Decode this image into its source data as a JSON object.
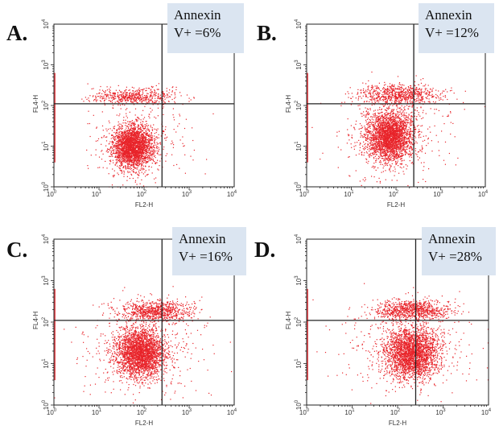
{
  "colors": {
    "dots": "#e8242a",
    "axes": "#222222",
    "annotation_bg": "#dbe5f1"
  },
  "chart_data": [
    {
      "type": "scatter",
      "panel_label": "A.",
      "xlabel": "FL2-H",
      "ylabel": "FL4-H",
      "x_scale": "log",
      "y_scale": "log",
      "xlim": [
        1,
        10000
      ],
      "ylim": [
        1,
        10000
      ],
      "x_ticks": [
        {
          "base": "10",
          "exp": "0"
        },
        {
          "base": "10",
          "exp": "1"
        },
        {
          "base": "10",
          "exp": "2"
        },
        {
          "base": "10",
          "exp": "3"
        },
        {
          "base": "10",
          "exp": "4"
        }
      ],
      "y_ticks": [
        {
          "base": "10",
          "exp": "0"
        },
        {
          "base": "10",
          "exp": "1"
        },
        {
          "base": "10",
          "exp": "2"
        },
        {
          "base": "10",
          "exp": "3"
        },
        {
          "base": "10",
          "exp": "4"
        }
      ],
      "quadrant_gate": {
        "x": 250,
        "y": 110
      },
      "annotation": {
        "line1": "Annexin",
        "line2": "V+ =6%"
      },
      "populations": [
        {
          "name": "main",
          "cx": 55,
          "cy": 10,
          "sx": 0.22,
          "sy": 0.26,
          "n": 2400
        },
        {
          "name": "upper-band",
          "cx": 60,
          "cy": 170,
          "sx": 0.45,
          "sy": 0.1,
          "n": 550
        },
        {
          "name": "scatter",
          "cx": 70,
          "cy": 12,
          "sx": 0.55,
          "sy": 0.5,
          "n": 380
        }
      ]
    },
    {
      "type": "scatter",
      "panel_label": "B.",
      "xlabel": "FL2-H",
      "ylabel": "FL4-H",
      "x_scale": "log",
      "y_scale": "log",
      "xlim": [
        1,
        10000
      ],
      "ylim": [
        1,
        10000
      ],
      "x_ticks": [
        {
          "base": "10",
          "exp": "0"
        },
        {
          "base": "10",
          "exp": "1"
        },
        {
          "base": "10",
          "exp": "2"
        },
        {
          "base": "10",
          "exp": "3"
        },
        {
          "base": "10",
          "exp": "4"
        }
      ],
      "y_ticks": [
        {
          "base": "10",
          "exp": "0"
        },
        {
          "base": "10",
          "exp": "1"
        },
        {
          "base": "10",
          "exp": "2"
        },
        {
          "base": "10",
          "exp": "3"
        },
        {
          "base": "10",
          "exp": "4"
        }
      ],
      "quadrant_gate": {
        "x": 250,
        "y": 110
      },
      "annotation": {
        "line1": "Annexin",
        "line2": "V+ =12%"
      },
      "populations": [
        {
          "name": "main",
          "cx": 70,
          "cy": 18,
          "sx": 0.25,
          "sy": 0.3,
          "n": 2500
        },
        {
          "name": "upper-band",
          "cx": 110,
          "cy": 190,
          "sx": 0.45,
          "sy": 0.13,
          "n": 750
        },
        {
          "name": "scatter",
          "cx": 80,
          "cy": 22,
          "sx": 0.6,
          "sy": 0.55,
          "n": 450
        }
      ]
    },
    {
      "type": "scatter",
      "panel_label": "C.",
      "xlabel": "FL2-H",
      "ylabel": "FL4-H",
      "x_scale": "log",
      "y_scale": "log",
      "xlim": [
        1,
        10000
      ],
      "ylim": [
        1,
        10000
      ],
      "x_ticks": [
        {
          "base": "10",
          "exp": "0"
        },
        {
          "base": "10",
          "exp": "1"
        },
        {
          "base": "10",
          "exp": "2"
        },
        {
          "base": "10",
          "exp": "3"
        },
        {
          "base": "10",
          "exp": "4"
        }
      ],
      "y_ticks": [
        {
          "base": "10",
          "exp": "0"
        },
        {
          "base": "10",
          "exp": "1"
        },
        {
          "base": "10",
          "exp": "2"
        },
        {
          "base": "10",
          "exp": "3"
        },
        {
          "base": "10",
          "exp": "4"
        }
      ],
      "quadrant_gate": {
        "x": 250,
        "y": 110
      },
      "annotation": {
        "line1": "Annexin",
        "line2": "V+ =16%"
      },
      "populations": [
        {
          "name": "main",
          "cx": 80,
          "cy": 18,
          "sx": 0.27,
          "sy": 0.3,
          "n": 2500
        },
        {
          "name": "upper-band",
          "cx": 170,
          "cy": 190,
          "sx": 0.4,
          "sy": 0.13,
          "n": 800
        },
        {
          "name": "scatter",
          "cx": 90,
          "cy": 25,
          "sx": 0.65,
          "sy": 0.55,
          "n": 450
        }
      ]
    },
    {
      "type": "scatter",
      "panel_label": "D.",
      "xlabel": "FL2-H",
      "ylabel": "FL4-H",
      "x_scale": "log",
      "y_scale": "log",
      "xlim": [
        1,
        10000
      ],
      "ylim": [
        1,
        10000
      ],
      "x_ticks": [
        {
          "base": "10",
          "exp": "0"
        },
        {
          "base": "10",
          "exp": "1"
        },
        {
          "base": "10",
          "exp": "2"
        },
        {
          "base": "10",
          "exp": "3"
        },
        {
          "base": "10",
          "exp": "4"
        }
      ],
      "y_ticks": [
        {
          "base": "10",
          "exp": "0"
        },
        {
          "base": "10",
          "exp": "1"
        },
        {
          "base": "10",
          "exp": "2"
        },
        {
          "base": "10",
          "exp": "3"
        },
        {
          "base": "10",
          "exp": "4"
        }
      ],
      "quadrant_gate": {
        "x": 250,
        "y": 110
      },
      "annotation": {
        "line1": "Annexin",
        "line2": "V+ =28%"
      },
      "populations": [
        {
          "name": "main",
          "cx": 200,
          "cy": 18,
          "sx": 0.28,
          "sy": 0.3,
          "n": 2400
        },
        {
          "name": "upper-band",
          "cx": 200,
          "cy": 200,
          "sx": 0.42,
          "sy": 0.12,
          "n": 850
        },
        {
          "name": "scatter",
          "cx": 150,
          "cy": 25,
          "sx": 0.7,
          "sy": 0.55,
          "n": 500
        }
      ]
    }
  ]
}
